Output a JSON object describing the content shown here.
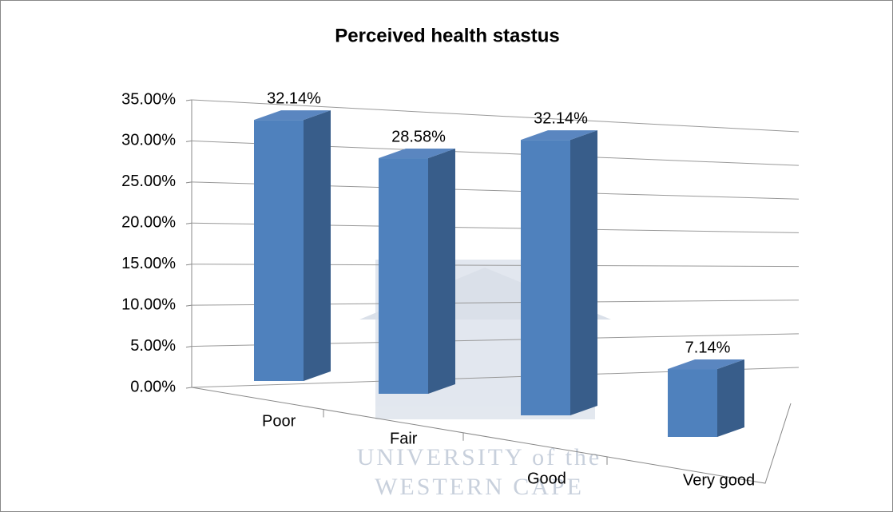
{
  "chart_data": {
    "type": "bar",
    "title": "Perceived health stastus",
    "categories": [
      "Poor",
      "Fair",
      "Good",
      "Very good"
    ],
    "values": [
      32.14,
      28.58,
      32.14,
      7.14
    ],
    "value_labels": [
      "32.14%",
      "28.58%",
      "32.14%",
      "7.14%"
    ],
    "color": "#4f81bd",
    "ylim": [
      0,
      35
    ],
    "yticks": [
      {
        "value": 0,
        "label": "0.00%"
      },
      {
        "value": 5,
        "label": "5.00%"
      },
      {
        "value": 10,
        "label": "10.00%"
      },
      {
        "value": 15,
        "label": "15.00%"
      },
      {
        "value": 20,
        "label": "20.00%"
      },
      {
        "value": 25,
        "label": "25.00%"
      },
      {
        "value": 30,
        "label": "30.00%"
      },
      {
        "value": 35,
        "label": "35.00%"
      }
    ],
    "grid": true,
    "watermark": [
      "UNIVERSITY of the",
      "WESTERN CAPE"
    ]
  }
}
